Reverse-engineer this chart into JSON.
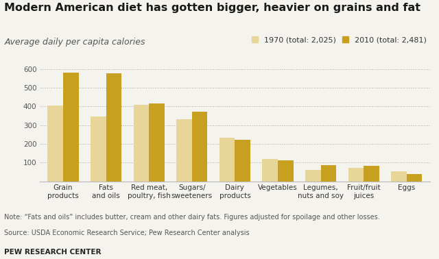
{
  "title": "Modern American diet has gotten bigger, heavier on grains and fat",
  "subtitle": "Average daily per capita calories",
  "categories": [
    "Grain\nproducts",
    "Fats\nand oils",
    "Red meat,\npoultry, fish",
    "Sugars/\nsweeteners",
    "Dairy\nproducts",
    "Vegetables",
    "Legumes,\nnuts and soy",
    "Fruit/fruit\njuices",
    "Eggs"
  ],
  "values_1970": [
    405,
    346,
    407,
    333,
    233,
    118,
    62,
    70,
    53
  ],
  "values_2010": [
    582,
    575,
    415,
    373,
    220,
    112,
    85,
    84,
    39
  ],
  "color_1970": "#e8d59a",
  "color_2010": "#c8a020",
  "legend_1970": "1970 (total: 2,025)",
  "legend_2010": "2010 (total: 2,481)",
  "ylim": [
    0,
    650
  ],
  "yticks": [
    100,
    200,
    300,
    400,
    500,
    600
  ],
  "note_line1": "Note: “Fats and oils” includes butter, cream and other dairy fats. Figures adjusted for spoilage and other losses.",
  "note_line2": "Source: USDA Economic Research Service; Pew Research Center analysis",
  "footer": "PEW RESEARCH CENTER",
  "background_color": "#f5f3ee",
  "bar_width": 0.36,
  "title_fontsize": 11.5,
  "subtitle_fontsize": 9,
  "tick_fontsize": 7.5,
  "note_fontsize": 7,
  "footer_fontsize": 7.5
}
